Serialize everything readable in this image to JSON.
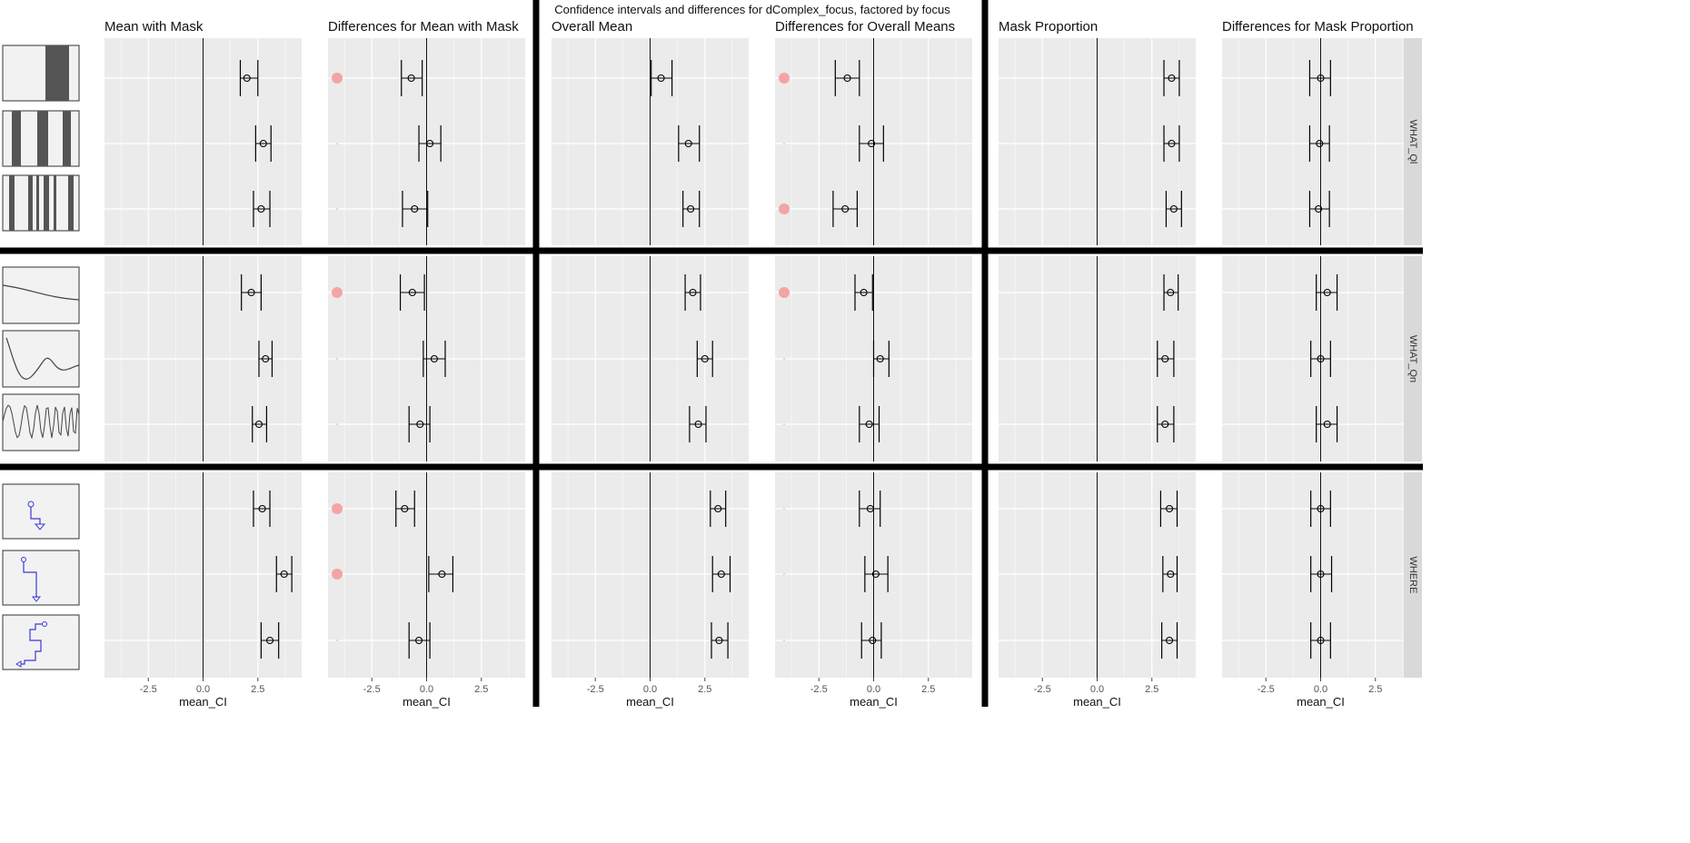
{
  "chart_data": {
    "type": "scatter",
    "title": "Confidence intervals and differences for dComplex_focus, factored by focus",
    "xlabel": "mean_CI",
    "xlim": [
      -4.5,
      4.5
    ],
    "x_ticks": [
      -2.5,
      0.0,
      2.5
    ],
    "grid": true,
    "facet_rows": [
      "WHAT_Ql",
      "WHAT_Qn",
      "WHERE"
    ],
    "panel_titles": [
      "Mean with Mask",
      "Differences for Mean with Mask",
      "Overall Mean",
      "Differences for Overall Means",
      "Mask Proportion",
      "Differences for Mask Proportion"
    ],
    "row_thumbnails": [
      "two-bar-stripe-icon",
      "four-bar-stripe-icon",
      "many-bar-stripe-icon",
      "gentle-curve-icon",
      "damped-wave-icon",
      "dense-wave-icon",
      "short-path-icon",
      "medium-path-icon",
      "long-path-icon"
    ],
    "series": [
      {
        "panel": "Mean with Mask",
        "points": [
          {
            "mean": 2.0,
            "lo": 1.7,
            "hi": 2.5
          },
          {
            "mean": 2.75,
            "lo": 2.4,
            "hi": 3.1
          },
          {
            "mean": 2.65,
            "lo": 2.3,
            "hi": 3.05
          },
          {
            "mean": 2.2,
            "lo": 1.75,
            "hi": 2.65
          },
          {
            "mean": 2.85,
            "lo": 2.55,
            "hi": 3.15
          },
          {
            "mean": 2.55,
            "lo": 2.25,
            "hi": 2.9
          },
          {
            "mean": 2.7,
            "lo": 2.3,
            "hi": 3.05
          },
          {
            "mean": 3.7,
            "lo": 3.35,
            "hi": 4.05
          },
          {
            "mean": 3.05,
            "lo": 2.65,
            "hi": 3.45
          }
        ]
      },
      {
        "panel": "Differences for Mean with Mask",
        "points": [
          {
            "mean": -0.7,
            "lo": -1.15,
            "hi": -0.2,
            "significant": true
          },
          {
            "mean": 0.15,
            "lo": -0.35,
            "hi": 0.65,
            "significant": false
          },
          {
            "mean": -0.55,
            "lo": -1.1,
            "hi": 0.05,
            "significant": false
          },
          {
            "mean": -0.65,
            "lo": -1.2,
            "hi": -0.1,
            "significant": true
          },
          {
            "mean": 0.35,
            "lo": -0.15,
            "hi": 0.85,
            "significant": false
          },
          {
            "mean": -0.3,
            "lo": -0.8,
            "hi": 0.15,
            "significant": false
          },
          {
            "mean": -1.0,
            "lo": -1.4,
            "hi": -0.55,
            "significant": true
          },
          {
            "mean": 0.7,
            "lo": 0.1,
            "hi": 1.2,
            "significant": true
          },
          {
            "mean": -0.35,
            "lo": -0.8,
            "hi": 0.15,
            "significant": false
          }
        ]
      },
      {
        "panel": "Overall Mean",
        "points": [
          {
            "mean": 0.5,
            "lo": 0.05,
            "hi": 1.0
          },
          {
            "mean": 1.75,
            "lo": 1.3,
            "hi": 2.25
          },
          {
            "mean": 1.85,
            "lo": 1.5,
            "hi": 2.25
          },
          {
            "mean": 1.95,
            "lo": 1.6,
            "hi": 2.3
          },
          {
            "mean": 2.5,
            "lo": 2.15,
            "hi": 2.85
          },
          {
            "mean": 2.2,
            "lo": 1.8,
            "hi": 2.55
          },
          {
            "mean": 3.1,
            "lo": 2.75,
            "hi": 3.45
          },
          {
            "mean": 3.25,
            "lo": 2.85,
            "hi": 3.65
          },
          {
            "mean": 3.15,
            "lo": 2.8,
            "hi": 3.55
          }
        ]
      },
      {
        "panel": "Differences for Overall Means",
        "points": [
          {
            "mean": -1.2,
            "lo": -1.75,
            "hi": -0.65,
            "significant": true
          },
          {
            "mean": -0.1,
            "lo": -0.65,
            "hi": 0.45,
            "significant": false
          },
          {
            "mean": -1.3,
            "lo": -1.85,
            "hi": -0.75,
            "significant": true
          },
          {
            "mean": -0.45,
            "lo": -0.85,
            "hi": -0.05,
            "significant": true
          },
          {
            "mean": 0.3,
            "lo": 0.0,
            "hi": 0.7,
            "significant": false
          },
          {
            "mean": -0.2,
            "lo": -0.65,
            "hi": 0.25,
            "significant": false
          },
          {
            "mean": -0.15,
            "lo": -0.65,
            "hi": 0.3,
            "significant": false
          },
          {
            "mean": 0.1,
            "lo": -0.4,
            "hi": 0.65,
            "significant": false
          },
          {
            "mean": -0.05,
            "lo": -0.55,
            "hi": 0.35,
            "significant": false
          }
        ]
      },
      {
        "panel": "Mask Proportion",
        "points": [
          {
            "mean": 3.4,
            "lo": 3.05,
            "hi": 3.75
          },
          {
            "mean": 3.4,
            "lo": 3.05,
            "hi": 3.75
          },
          {
            "mean": 3.5,
            "lo": 3.15,
            "hi": 3.85
          },
          {
            "mean": 3.35,
            "lo": 3.05,
            "hi": 3.7
          },
          {
            "mean": 3.1,
            "lo": 2.75,
            "hi": 3.5
          },
          {
            "mean": 3.1,
            "lo": 2.75,
            "hi": 3.5
          },
          {
            "mean": 3.3,
            "lo": 2.9,
            "hi": 3.65
          },
          {
            "mean": 3.35,
            "lo": 3.0,
            "hi": 3.65
          },
          {
            "mean": 3.3,
            "lo": 2.95,
            "hi": 3.65
          }
        ]
      },
      {
        "panel": "Differences for Mask Proportion",
        "points": [
          {
            "mean": 0.0,
            "lo": -0.5,
            "hi": 0.45
          },
          {
            "mean": -0.05,
            "lo": -0.5,
            "hi": 0.4
          },
          {
            "mean": -0.1,
            "lo": -0.5,
            "hi": 0.4
          },
          {
            "mean": 0.3,
            "lo": -0.2,
            "hi": 0.75
          },
          {
            "mean": 0.0,
            "lo": -0.45,
            "hi": 0.45
          },
          {
            "mean": 0.3,
            "lo": -0.2,
            "hi": 0.75
          },
          {
            "mean": 0.0,
            "lo": -0.45,
            "hi": 0.45
          },
          {
            "mean": 0.0,
            "lo": -0.45,
            "hi": 0.5
          },
          {
            "mean": 0.0,
            "lo": -0.45,
            "hi": 0.45
          }
        ]
      }
    ],
    "colors": {
      "panel_bg": "#ebebeb",
      "grid": "#ffffff",
      "marker": "#000000",
      "significance_dot": "#f4a4a4",
      "strip_bg": "#d9d9d9",
      "divider": "#000000",
      "thumb_bg": "#f2f2f2",
      "thumb_stripe": "#555555",
      "path_blue": "#3a3ad8"
    }
  }
}
